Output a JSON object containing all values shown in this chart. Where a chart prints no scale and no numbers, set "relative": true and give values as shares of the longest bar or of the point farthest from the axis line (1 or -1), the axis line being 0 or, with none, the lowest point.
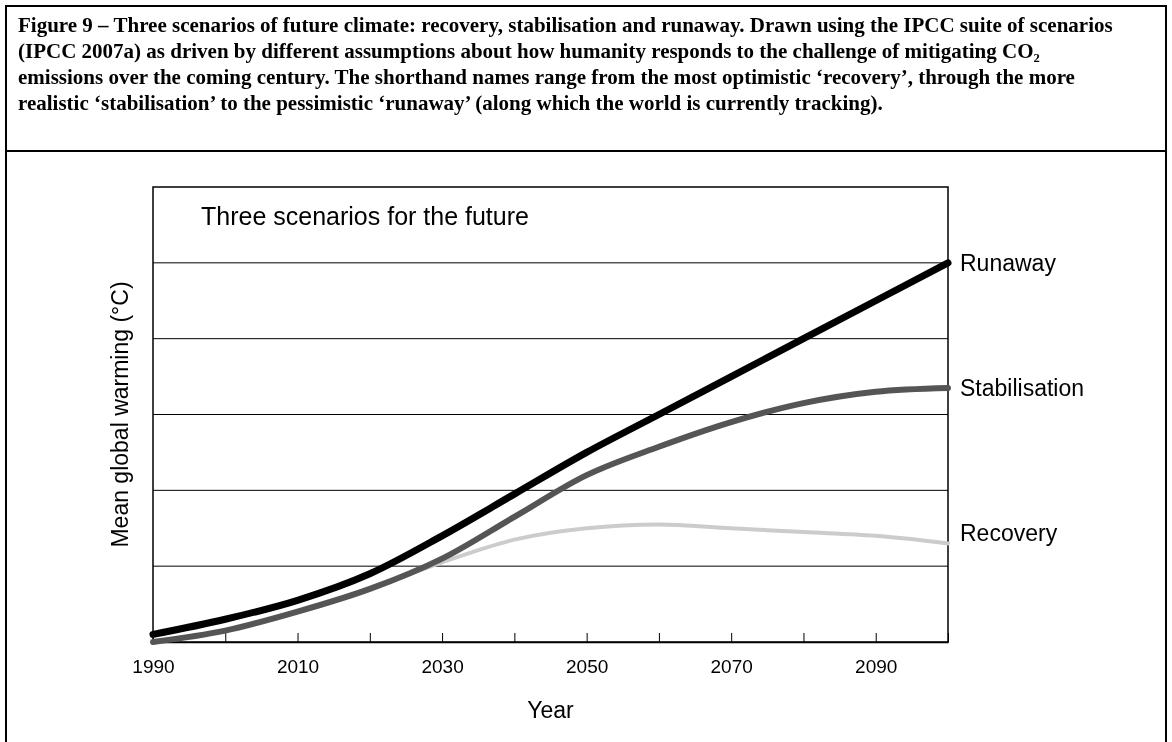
{
  "chart_data": {
    "type": "line",
    "title": "Three scenarios for the future",
    "annotations": [
      "Figure 9 – Three scenarios of future climate: recovery, stabilisation and runaway. Drawn using the IPCC suite of scenarios (IPCC 2007a) as driven by different assumptions about how humanity responds to the challenge of mitigating CO₂ emissions over the coming century. The shorthand names range from the most optimistic ‘recovery’, through the more realistic ‘stabilisation’ to the pessimistic ‘runaway’ (along which the world is currently tracking)."
    ],
    "xlabel": "Year",
    "ylabel": "Mean global warming (°C)",
    "relative": true,
    "x": [
      1990,
      2000,
      2010,
      2020,
      2030,
      2040,
      2050,
      2060,
      2070,
      2080,
      2090,
      2100
    ],
    "xlim": [
      1990,
      2100
    ],
    "xticks": [
      1990,
      {
        "value": 2000,
        "label": null
      },
      2010,
      {
        "value": 2020,
        "label": null
      },
      2030,
      {
        "value": 2040,
        "label": null
      },
      2050,
      {
        "value": 2060,
        "label": null
      },
      2070,
      {
        "value": 2080,
        "label": null
      },
      2090,
      {
        "value": 2100,
        "label": null
      }
    ],
    "grid": "y",
    "marker": "none",
    "line_style": "solid",
    "series": [
      {
        "name": "Recovery",
        "color": "#cccccc",
        "values": [
          0.0,
          0.03,
          0.08,
          0.14,
          0.21,
          0.27,
          0.3,
          0.31,
          0.3,
          0.29,
          0.28,
          0.26
        ]
      },
      {
        "name": "Stabilisation",
        "color": "#555555",
        "values": [
          0.0,
          0.03,
          0.08,
          0.14,
          0.22,
          0.33,
          0.44,
          0.515,
          0.58,
          0.63,
          0.66,
          0.67
        ]
      },
      {
        "name": "Runaway",
        "color": "#000000",
        "values": [
          0.02,
          0.06,
          0.11,
          0.18,
          0.28,
          0.39,
          0.5,
          0.6,
          0.7,
          0.8,
          0.9,
          1.0
        ]
      }
    ]
  }
}
